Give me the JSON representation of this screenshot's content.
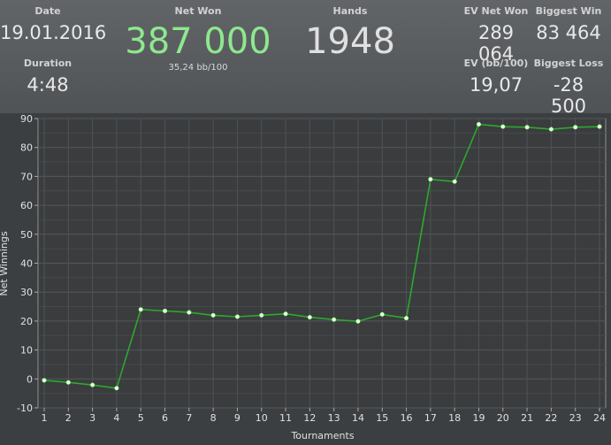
{
  "stats": {
    "date": {
      "label": "Date",
      "value": "19.01.2016"
    },
    "duration": {
      "label": "Duration",
      "value": "4:48"
    },
    "net_won": {
      "label": "Net Won",
      "value": "387 000",
      "sub": "35,24 bb/100",
      "color": "#8ee88e"
    },
    "hands": {
      "label": "Hands",
      "value": "1948"
    },
    "ev_net_won": {
      "label": "EV Net Won",
      "value": "289 064"
    },
    "biggest_win": {
      "label": "Biggest Win",
      "value": "83 464"
    },
    "ev_bb100": {
      "label": "EV (bb/100)",
      "value": "19,07"
    },
    "biggest_loss": {
      "label": "Biggest Loss",
      "value": "-28 500"
    }
  },
  "chart_data": {
    "type": "line",
    "xlabel": "Tournaments",
    "ylabel": "Net Winnings",
    "ylim": [
      -10,
      90
    ],
    "xlim": [
      1,
      24
    ],
    "yticks": [
      -10,
      0,
      10,
      20,
      30,
      40,
      50,
      60,
      70,
      80,
      90
    ],
    "x": [
      1,
      2,
      3,
      4,
      5,
      6,
      7,
      8,
      9,
      10,
      11,
      12,
      13,
      14,
      15,
      16,
      17,
      18,
      19,
      20,
      21,
      22,
      23,
      24
    ],
    "series": [
      {
        "color": "#2ea82e",
        "values": [
          -0.5,
          -1.2,
          -2.1,
          -3.2,
          24.0,
          23.5,
          23.0,
          22.0,
          21.5,
          22.0,
          22.5,
          21.3,
          20.5,
          19.9,
          22.3,
          21.0,
          69.0,
          68.2,
          88.0,
          87.2,
          87.0,
          86.3,
          87.0,
          87.2
        ]
      }
    ],
    "grid": true
  }
}
